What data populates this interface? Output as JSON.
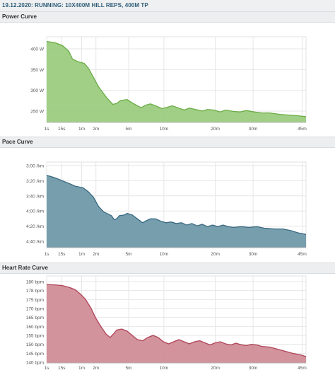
{
  "header": {
    "title": "19.12.2020: RUNNING: 10X400M HILL REPS, 400M TP"
  },
  "x_ticks": [
    "1s",
    "15s",
    "1m",
    "2m",
    "5m",
    "10m",
    "20m",
    "30m",
    "45m"
  ],
  "chart_data": [
    {
      "type": "area",
      "title": "Power Curve",
      "color": "#6aad45",
      "fill": "#9ccc80",
      "yticks": [
        "400 W",
        "350 W",
        "300 W",
        "250 W"
      ],
      "ylim": [
        230,
        410
      ],
      "points": [
        [
          0,
          400
        ],
        [
          0.03,
          398
        ],
        [
          0.06,
          392
        ],
        [
          0.085,
          380
        ],
        [
          0.1,
          363
        ],
        [
          0.12,
          358
        ],
        [
          0.145,
          354
        ],
        [
          0.16,
          345
        ],
        [
          0.18,
          325
        ],
        [
          0.2,
          305
        ],
        [
          0.23,
          283
        ],
        [
          0.255,
          268
        ],
        [
          0.27,
          270
        ],
        [
          0.285,
          276
        ],
        [
          0.31,
          278
        ],
        [
          0.33,
          271
        ],
        [
          0.35,
          265
        ],
        [
          0.365,
          261
        ],
        [
          0.38,
          266
        ],
        [
          0.4,
          269
        ],
        [
          0.42,
          265
        ],
        [
          0.445,
          259
        ],
        [
          0.465,
          262
        ],
        [
          0.485,
          265
        ],
        [
          0.51,
          260
        ],
        [
          0.53,
          256
        ],
        [
          0.55,
          260
        ],
        [
          0.575,
          257
        ],
        [
          0.6,
          254
        ],
        [
          0.62,
          257
        ],
        [
          0.645,
          256
        ],
        [
          0.67,
          252
        ],
        [
          0.69,
          256
        ],
        [
          0.72,
          253
        ],
        [
          0.745,
          252
        ],
        [
          0.77,
          255
        ],
        [
          0.8,
          252
        ],
        [
          0.83,
          250
        ],
        [
          0.86,
          250
        ],
        [
          0.9,
          247
        ],
        [
          0.94,
          245
        ],
        [
          0.97,
          244
        ],
        [
          1,
          242
        ]
      ]
    },
    {
      "type": "area",
      "title": "Pace Curve",
      "color": "#3b6a82",
      "fill": "#6f99a9",
      "yticks": [
        "3:00 /km",
        "3:20 /km",
        "3:40 /km",
        "4:00 /km",
        "4:20 /km",
        "4:40 /km"
      ],
      "ylim": [
        180,
        290
      ],
      "points": [
        [
          0,
          197
        ],
        [
          0.03,
          200
        ],
        [
          0.06,
          204
        ],
        [
          0.09,
          208
        ],
        [
          0.11,
          211
        ],
        [
          0.14,
          213
        ],
        [
          0.16,
          218
        ],
        [
          0.18,
          225
        ],
        [
          0.2,
          237
        ],
        [
          0.22,
          244
        ],
        [
          0.25,
          249
        ],
        [
          0.26,
          254
        ],
        [
          0.27,
          253
        ],
        [
          0.28,
          249
        ],
        [
          0.3,
          248
        ],
        [
          0.31,
          246
        ],
        [
          0.33,
          248
        ],
        [
          0.35,
          253
        ],
        [
          0.37,
          258
        ],
        [
          0.38,
          256
        ],
        [
          0.4,
          253
        ],
        [
          0.42,
          253
        ],
        [
          0.44,
          256
        ],
        [
          0.46,
          258
        ],
        [
          0.48,
          257
        ],
        [
          0.5,
          259
        ],
        [
          0.52,
          258
        ],
        [
          0.54,
          261
        ],
        [
          0.56,
          259
        ],
        [
          0.58,
          262
        ],
        [
          0.6,
          260
        ],
        [
          0.62,
          263
        ],
        [
          0.64,
          261
        ],
        [
          0.66,
          263
        ],
        [
          0.68,
          261
        ],
        [
          0.7,
          263
        ],
        [
          0.72,
          264
        ],
        [
          0.75,
          263
        ],
        [
          0.78,
          264
        ],
        [
          0.81,
          263
        ],
        [
          0.84,
          265
        ],
        [
          0.88,
          266
        ],
        [
          0.91,
          266
        ],
        [
          0.94,
          268
        ],
        [
          0.97,
          271
        ],
        [
          1,
          273
        ]
      ]
    },
    {
      "type": "area",
      "title": "Heart Rate Curve",
      "color": "#b04458",
      "fill": "#d08d97",
      "yticks": [
        "180 bpm",
        "178 bpm",
        "175 bpm",
        "170 bpm",
        "165 bpm",
        "160 bpm",
        "155 bpm",
        "150 bpm",
        "145 bpm",
        "140 bpm"
      ],
      "ylim": [
        140,
        181
      ],
      "points": [
        [
          0,
          177
        ],
        [
          0.03,
          176.8
        ],
        [
          0.06,
          176.5
        ],
        [
          0.09,
          175.5
        ],
        [
          0.11,
          174.5
        ],
        [
          0.13,
          172.5
        ],
        [
          0.15,
          170
        ],
        [
          0.17,
          166
        ],
        [
          0.19,
          161
        ],
        [
          0.21,
          157
        ],
        [
          0.23,
          153.5
        ],
        [
          0.245,
          152
        ],
        [
          0.26,
          154
        ],
        [
          0.27,
          155.5
        ],
        [
          0.29,
          156
        ],
        [
          0.31,
          155
        ],
        [
          0.33,
          153
        ],
        [
          0.35,
          151
        ],
        [
          0.37,
          150.5
        ],
        [
          0.39,
          152
        ],
        [
          0.41,
          153
        ],
        [
          0.43,
          152
        ],
        [
          0.45,
          150
        ],
        [
          0.47,
          149
        ],
        [
          0.49,
          150
        ],
        [
          0.51,
          151
        ],
        [
          0.53,
          150
        ],
        [
          0.55,
          149
        ],
        [
          0.57,
          150
        ],
        [
          0.59,
          150.5
        ],
        [
          0.61,
          149.5
        ],
        [
          0.63,
          148.5
        ],
        [
          0.65,
          149.5
        ],
        [
          0.67,
          150
        ],
        [
          0.69,
          149
        ],
        [
          0.71,
          148.5
        ],
        [
          0.73,
          149.3
        ],
        [
          0.75,
          148.6
        ],
        [
          0.77,
          148.2
        ],
        [
          0.79,
          148.8
        ],
        [
          0.81,
          148.5
        ],
        [
          0.83,
          147.8
        ],
        [
          0.86,
          147.5
        ],
        [
          0.89,
          146.5
        ],
        [
          0.92,
          145.5
        ],
        [
          0.95,
          144.5
        ],
        [
          0.98,
          143.8
        ],
        [
          1,
          143
        ]
      ]
    }
  ]
}
